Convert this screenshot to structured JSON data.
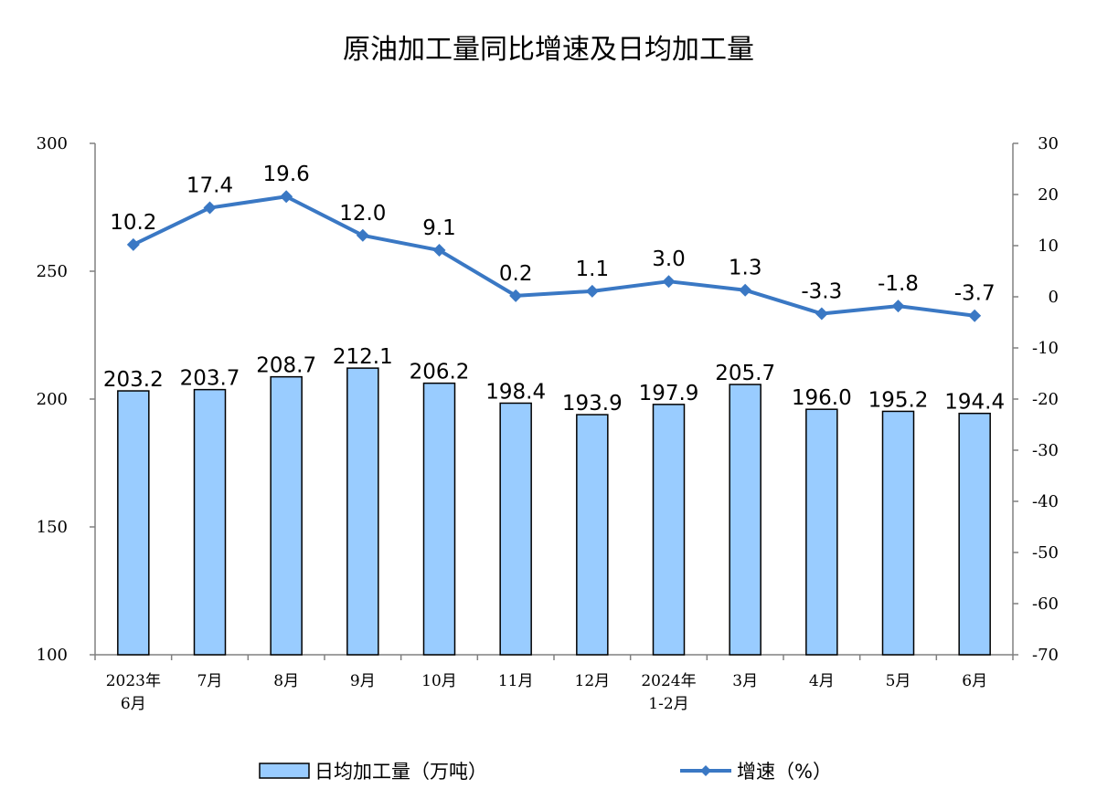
{
  "chart_data": {
    "type": "bar+line",
    "title": "原油加工量同比增速及日均加工量",
    "categories": [
      [
        "2023年",
        "6月"
      ],
      [
        "7月"
      ],
      [
        "8月"
      ],
      [
        "9月"
      ],
      [
        "10月"
      ],
      [
        "11月"
      ],
      [
        "12月"
      ],
      [
        "2024年",
        "1-2月"
      ],
      [
        "3月"
      ],
      [
        "4月"
      ],
      [
        "5月"
      ],
      [
        "6月"
      ]
    ],
    "series": [
      {
        "name": "日均加工量（万吨）",
        "type": "bar",
        "axis": "left",
        "color": "#99ccff",
        "values": [
          203.2,
          203.7,
          208.7,
          212.1,
          206.2,
          198.4,
          193.9,
          197.9,
          205.7,
          196.0,
          195.2,
          194.4
        ],
        "labels": [
          "203.2",
          "203.7",
          "208.7",
          "212.1",
          "206.2",
          "198.4",
          "193.9",
          "197.9",
          "205.7",
          "196.0",
          "195.2",
          "194.4"
        ]
      },
      {
        "name": "增速（%）",
        "type": "line",
        "axis": "right",
        "color": "#3a78c4",
        "values": [
          10.2,
          17.4,
          19.6,
          12.0,
          9.1,
          0.2,
          1.1,
          3.0,
          1.3,
          -3.3,
          -1.8,
          -3.7
        ],
        "labels": [
          "10.2",
          "17.4",
          "19.6",
          "12.0",
          "9.1",
          "0.2",
          "1.1",
          "3.0",
          "1.3",
          "-3.3",
          "-1.8",
          "-3.7"
        ]
      }
    ],
    "y_left": {
      "min": 100,
      "max": 300,
      "ticks": [
        "300",
        "250",
        "200",
        "150",
        "100"
      ]
    },
    "y_right": {
      "min": -70,
      "max": 30,
      "ticks": [
        "30",
        "20",
        "10",
        "0",
        "-10",
        "-20",
        "-30",
        "-40",
        "-50",
        "-60",
        "-70"
      ]
    },
    "grid": false,
    "legend_position": "bottom"
  }
}
